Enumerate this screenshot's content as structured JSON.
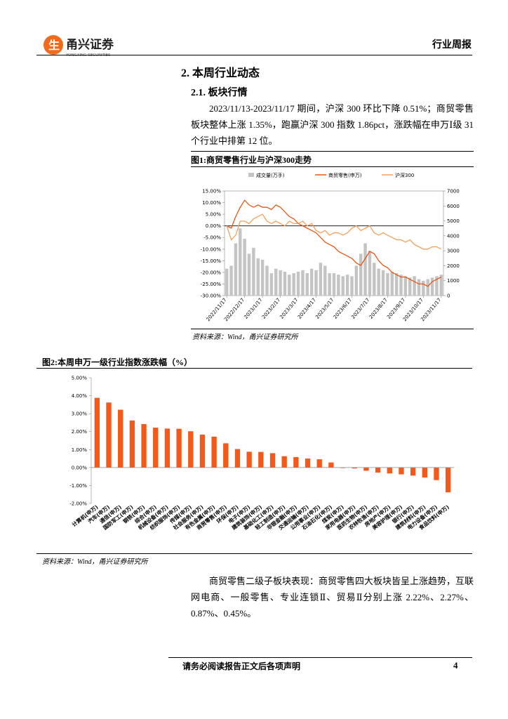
{
  "header": {
    "logo_name": "甬兴证券",
    "logo_english": "YONGXING SECURITIES",
    "report_type": "行业周报"
  },
  "section_title": "2. 本周行业动态",
  "subsection_title": "2.1. 板块行情",
  "paragraphs": [
    "2023/11/13-2023/11/17 期间，沪深 300 环比下降 0.51%；商贸零售板块整体上涨 1.35%，跑赢沪深 300 指数 1.86pct，涨跌幅在申万Ⅰ级 31 个行业中排第 12 位。",
    "商贸零售二级子板块表现：商贸零售四大板块皆呈上涨趋势，互联网电商、一般零售、专业连锁Ⅱ、贸易Ⅱ分别上涨 2.22%、2.27%、0.87%、0.45%。"
  ],
  "figures": [
    {
      "caption": "图1:商贸零售行业与沪深300走势",
      "source": "资料来源：Wind，甬兴证券研究所"
    },
    {
      "caption": "图2:本周申万一级行业指数涨跌幅（%）",
      "source": "资料来源：Wind，甬兴证券研究所"
    }
  ],
  "chart_data": [
    {
      "type": "line",
      "categories": [
        "2022/11/17",
        null,
        null,
        null,
        "2022/12/17",
        null,
        null,
        null,
        "2023/1/17",
        null,
        null,
        null,
        "2023/2/17",
        null,
        null,
        null,
        "2023/3/17",
        null,
        null,
        null,
        "2023/4/17",
        null,
        null,
        null,
        "2023/5/17",
        null,
        null,
        null,
        "2023/6/17",
        null,
        null,
        null,
        "2023/7/17",
        null,
        null,
        null,
        "2023/8/17",
        null,
        null,
        null,
        "2023/9/17",
        null,
        null,
        null,
        "2023/10/17",
        null,
        null,
        null,
        "2023/11/17"
      ],
      "series": [
        {
          "name": "成交量(万手)",
          "type": "bar",
          "axis": "y2",
          "color": "#c4c4c4",
          "values": [
            1800,
            2000,
            3500,
            4500,
            3800,
            2800,
            3200,
            2500,
            2400,
            2000,
            1500,
            1800,
            1700,
            1600,
            1400,
            1500,
            1600,
            1700,
            1500,
            1800,
            1700,
            2200,
            2000,
            1500,
            1500,
            1400,
            1300,
            1400,
            1300,
            2000,
            2800,
            3500,
            3000,
            2200,
            1800,
            1700,
            1500,
            1600,
            1500,
            1400,
            1300,
            1200,
            1300,
            1100,
            1000,
            1100,
            1200,
            1300,
            1400
          ]
        },
        {
          "name": "商贸零售(申万)",
          "color": "#ea5514",
          "values": [
            0,
            -1,
            4,
            8,
            11,
            9,
            8,
            9,
            8,
            8,
            7,
            9,
            8,
            6,
            4,
            3,
            1,
            0,
            -1,
            -2,
            -3,
            -5,
            -7,
            -8,
            -9,
            -11,
            -12,
            -13,
            -14,
            -16,
            -17,
            -14,
            -11,
            -12,
            -15,
            -17,
            -18,
            -20,
            -21,
            -22,
            -22,
            -23,
            -24,
            -25,
            -25,
            -26,
            -24,
            -23,
            -22
          ]
        },
        {
          "name": "沪深300",
          "color": "#f5a05a",
          "values": [
            0,
            -6,
            -4,
            2,
            2,
            1,
            3,
            4,
            5,
            2,
            1,
            2,
            1,
            0,
            2,
            1,
            1,
            2,
            0,
            1,
            -2,
            -3,
            -2,
            -4,
            -3,
            -3,
            -4,
            -3,
            -1,
            0,
            -2,
            -1,
            0,
            -3,
            -4,
            -3,
            -4,
            -5,
            -6,
            -6,
            -7,
            -6,
            -8,
            -9,
            -10,
            -10,
            -9,
            -9,
            -10
          ]
        }
      ],
      "ylim": [
        -30,
        15
      ],
      "yticks": [
        {
          "value": 15,
          "label": "15.00%"
        },
        {
          "value": 10,
          "label": "10.00%"
        },
        {
          "value": 5,
          "label": "5.00%"
        },
        {
          "value": 0,
          "label": "0.00%"
        },
        {
          "value": -5,
          "label": "-5.00%"
        },
        {
          "value": -10,
          "label": "-10.00%"
        },
        {
          "value": -15,
          "label": "-15.00%"
        },
        {
          "value": -20,
          "label": "-20.00%"
        },
        {
          "value": -25,
          "label": "-25.00%"
        },
        {
          "value": -30,
          "label": "-30.00%"
        }
      ],
      "y2lim": [
        0,
        7000
      ],
      "y2ticks": [
        0,
        1000,
        2000,
        3000,
        4000,
        5000,
        6000,
        7000
      ],
      "legend": "top"
    },
    {
      "type": "bar",
      "color": "#f4591a",
      "categories": [
        "计算机(申万)",
        "汽车(申万)",
        "通信(申万)",
        "国防军工(申万)",
        "钢铁(申万)",
        "综合(申万)",
        "机械设备(申万)",
        "纺织服饰(申万)",
        "传媒(申万)",
        "社会服务(申万)",
        "有色金属(申万)",
        "商贸零售(申万)",
        "环保(申万)",
        "电子(申万)",
        "建筑装饰(申万)",
        "基础化工(申万)",
        "轻工制造(申万)",
        "非银金融(申万)",
        "交通运输(申万)",
        "公用事业(申万)",
        "石油石化(申万)",
        "煤炭(申万)",
        "家用电器(申万)",
        "医药生物(申万)",
        "农林牧渔(申万)",
        "房地产(申万)",
        "美容护理(申万)",
        "银行(申万)",
        "建筑材料(申万)",
        "电力设备(申万)",
        "食品饮料(申万)"
      ],
      "values": [
        3.88,
        3.62,
        3.22,
        2.62,
        2.42,
        2.22,
        2.17,
        2.16,
        2.02,
        1.83,
        1.72,
        1.35,
        1.03,
        0.88,
        0.87,
        0.8,
        0.63,
        0.58,
        0.5,
        0.46,
        0.28,
        -0.03,
        -0.05,
        -0.18,
        -0.28,
        -0.33,
        -0.38,
        -0.45,
        -0.56,
        -0.7,
        -1.38
      ],
      "ylim": [
        -2,
        5
      ],
      "yticks": [
        {
          "value": 5,
          "label": "5.00%"
        },
        {
          "value": 4,
          "label": "4.00%"
        },
        {
          "value": 3,
          "label": "3.00%"
        },
        {
          "value": 2,
          "label": "2.00%"
        },
        {
          "value": 1,
          "label": "1.00%"
        },
        {
          "value": 0,
          "label": "0.00%"
        },
        {
          "value": -1,
          "label": "-1.00%"
        },
        {
          "value": -2,
          "label": "-2.00%"
        }
      ]
    }
  ],
  "footer": {
    "note": "请务必阅读报告正文后各项声明",
    "page": "4"
  }
}
